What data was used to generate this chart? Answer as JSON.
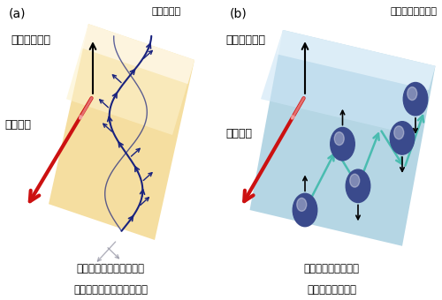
{
  "fig_width": 5.0,
  "fig_height": 3.4,
  "dpi": 100,
  "bg_color": "#ffffff",
  "panel_a": {
    "label": "(a)",
    "subtitle": "（絶縁体）",
    "spin_direction_label": "スピンの向き",
    "spin_current_label": "スピン流",
    "bottom_label_line1": "スピンの波（マグノン）",
    "bottom_label_line2": "によって運ばれるスピン流"
  },
  "panel_b": {
    "label": "(b)",
    "subtitle": "（金属・半導体）",
    "spin_direction_label": "スピンの向き",
    "spin_current_label": "スピン流",
    "bottom_label_line1": "電子の運動によって",
    "bottom_label_line2": "運ばれるスピン流"
  }
}
